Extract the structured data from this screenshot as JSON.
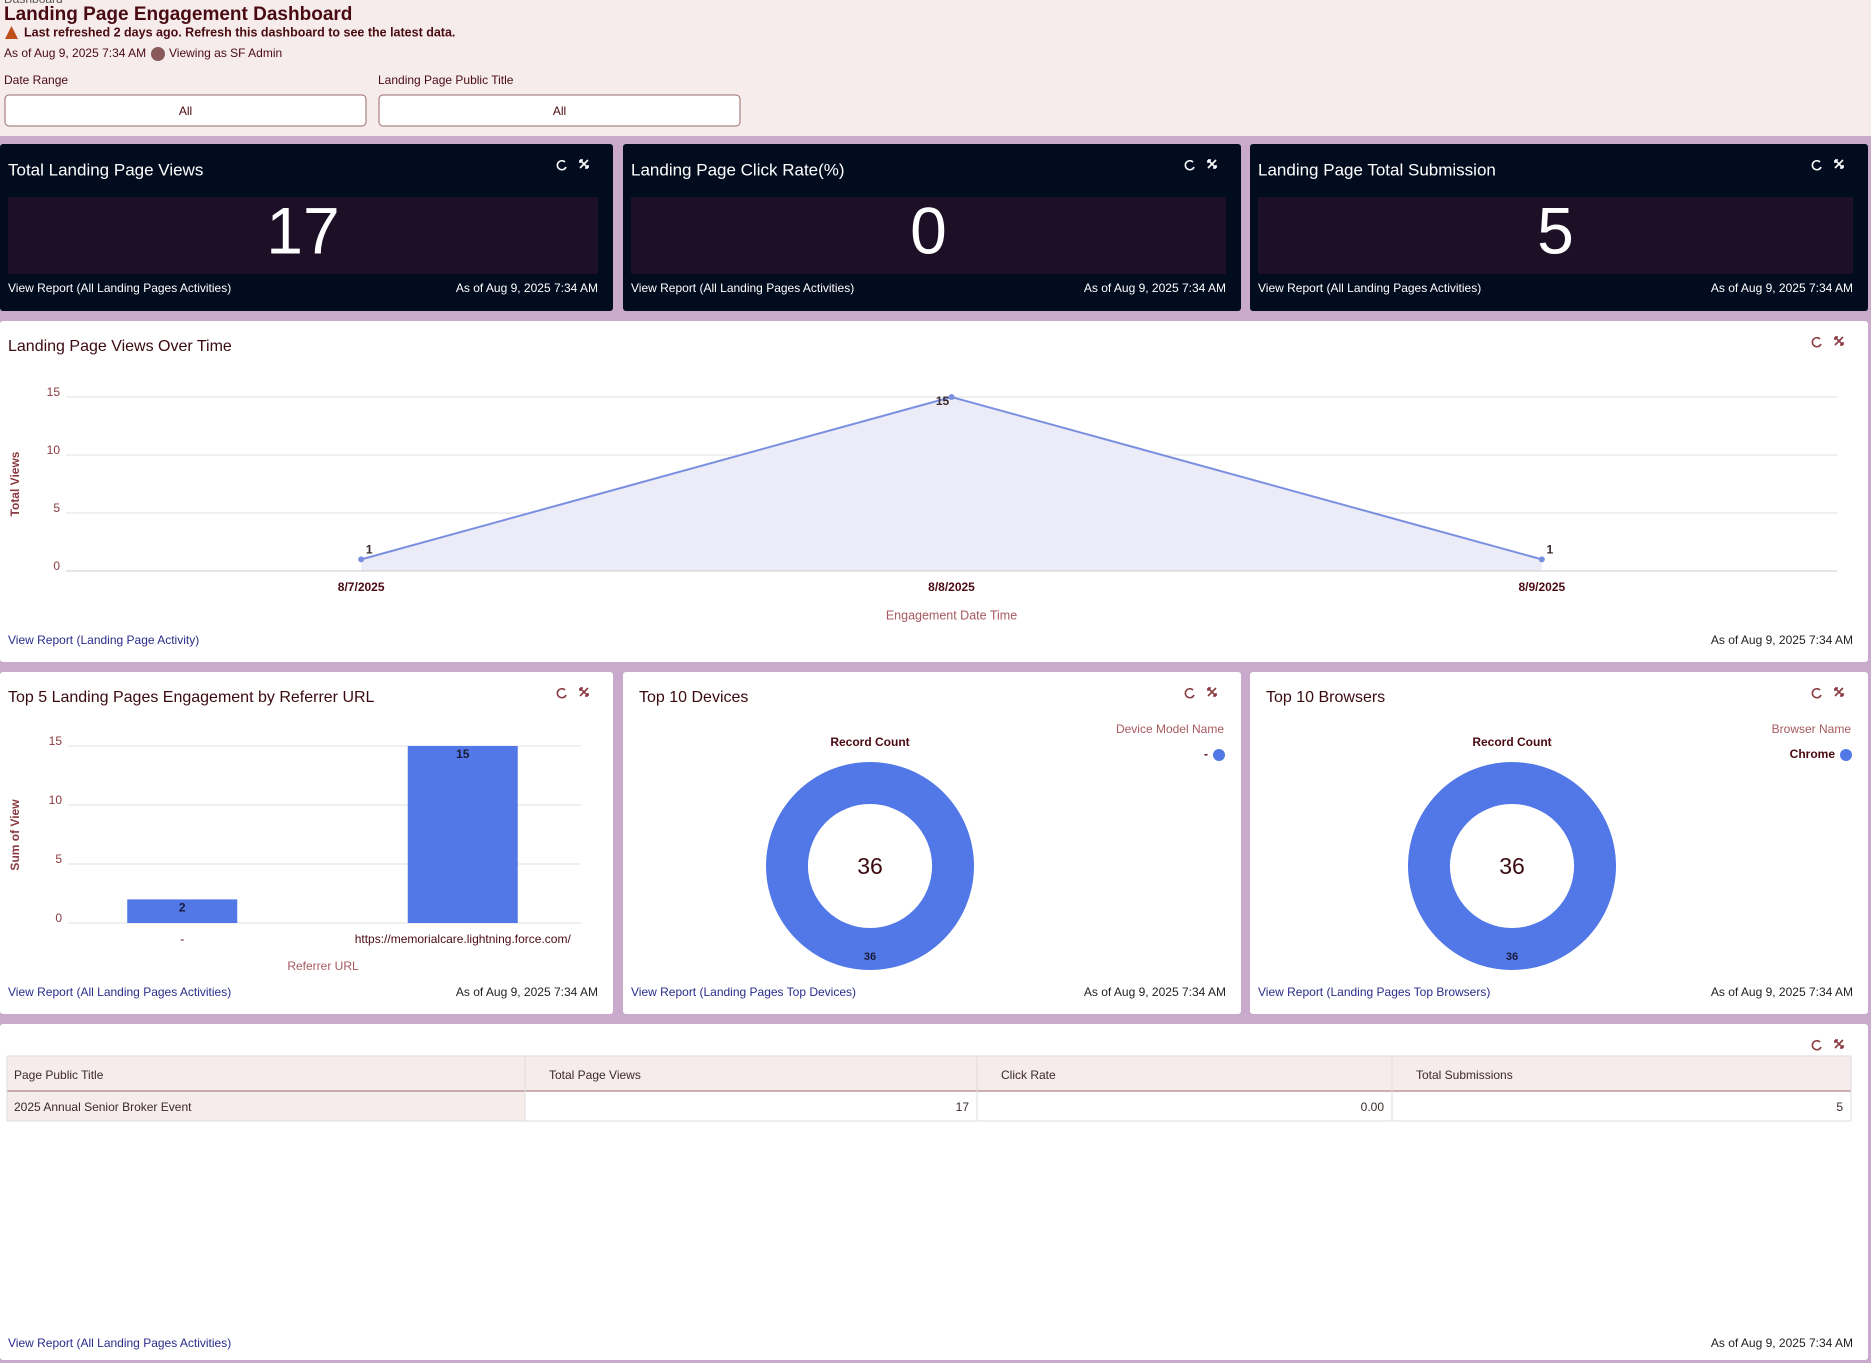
{
  "header": {
    "breadcrumb": "Dashboard",
    "title": "Landing Page Engagement Dashboard",
    "warning": "Last refreshed 2 days ago. Refresh this dashboard to see the latest data.",
    "as_of": "As of Aug 9, 2025 7:34 AM",
    "viewing": "Viewing as SF Admin"
  },
  "filters": [
    {
      "label": "Date Range",
      "value": "All"
    },
    {
      "label": "Landing Page Public Title",
      "value": "All"
    }
  ],
  "metrics": [
    {
      "title": "Total Landing Page Views",
      "value": 17,
      "link": "View Report (All Landing Pages Activities)",
      "as_of": "As of Aug 9, 2025 7:34 AM"
    },
    {
      "title": "Landing Page Click Rate(%)",
      "value": 0,
      "link": "View Report (All Landing Pages Activities)",
      "as_of": "As of Aug 9, 2025 7:34 AM"
    },
    {
      "title": "Landing Page Total Submission",
      "value": 5,
      "link": "View Report (All Landing Pages Activities)",
      "as_of": "As of Aug 9, 2025 7:34 AM"
    }
  ],
  "views_chart": {
    "type": "line",
    "title": "Landing Page Views Over Time",
    "y_label": "Total Views",
    "x_label": "Engagement Date Time",
    "categories": [
      "8/7/2025",
      "8/8/2025",
      "8/9/2025"
    ],
    "values": [
      1,
      15,
      1
    ],
    "color": "#7b8fe0",
    "ylim": [
      0,
      15
    ],
    "yticks": [
      0,
      5,
      10,
      15
    ],
    "grid": true,
    "link": "View Report (Landing Page Activity)",
    "as_of": "As of Aug 9, 2025 7:34 AM"
  },
  "referrer_chart": {
    "type": "bar",
    "title": "Top 5 Landing Pages Engagement by Referrer URL",
    "y_label": "Sum of View",
    "x_label": "Referrer URL",
    "categories": [
      "-",
      "https://memorialcare.lightning.force.com/"
    ],
    "values": [
      2,
      15
    ],
    "color": "#5178e6",
    "ylim": [
      0,
      15
    ],
    "yticks": [
      0,
      5,
      10,
      15
    ],
    "grid": true,
    "link": "View Report (All Landing Pages Activities)",
    "as_of": "As of Aug 9, 2025 7:34 AM"
  },
  "devices_chart": {
    "type": "donut",
    "title": "Top 10 Devices",
    "measure": "Record Count",
    "legend_title": "Device Model Name",
    "categories": [
      "-"
    ],
    "values": [
      36
    ],
    "total": 36,
    "color": "#5178e6",
    "link": "View Report (Landing Pages Top Devices)",
    "as_of": "As of Aug 9, 2025 7:34 AM"
  },
  "browsers_chart": {
    "type": "donut",
    "title": "Top 10 Browsers",
    "measure": "Record Count",
    "legend_title": "Browser Name",
    "categories": [
      "Chrome"
    ],
    "values": [
      36
    ],
    "total": 36,
    "color": "#5178e6",
    "link": "View Report (Landing Pages Top Browsers)",
    "as_of": "As of Aug 9, 2025 7:34 AM"
  },
  "table": {
    "columns": [
      "Page Public Title",
      "Total Page Views",
      "Click Rate",
      "Total Submissions"
    ],
    "rows": [
      [
        "2025 Annual Senior Broker Event",
        "17",
        "0.00",
        "5"
      ]
    ],
    "link": "View Report (All Landing Pages Activities)",
    "as_of": "As of Aug 9, 2025 7:34 AM"
  }
}
